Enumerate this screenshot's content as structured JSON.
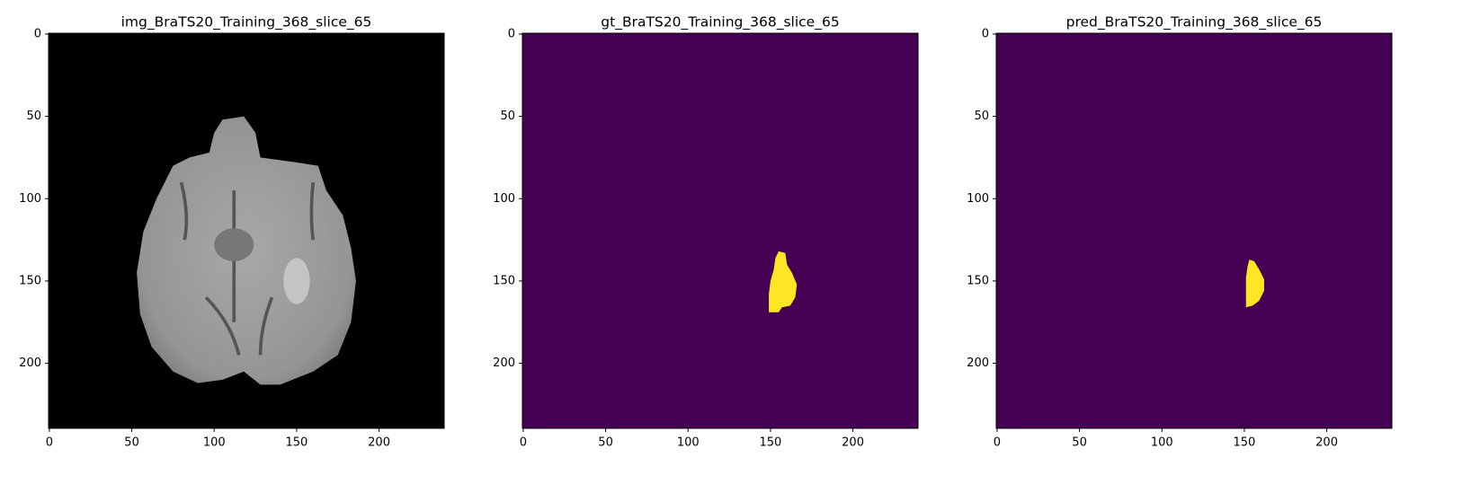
{
  "chart_data": [
    {
      "type": "image",
      "title": "img_BraTS20_Training_368_slice_65",
      "color": "#000000",
      "xlim": [
        -0.5,
        239.5
      ],
      "ylim": [
        239.5,
        -0.5
      ],
      "xticks": [
        0,
        50,
        100,
        150,
        200
      ],
      "yticks": [
        0,
        50,
        100,
        150,
        200
      ]
    },
    {
      "type": "image",
      "title": "gt_BraTS20_Training_368_slice_65",
      "color": "#440154",
      "mask_color": "#fde725",
      "xlim": [
        -0.5,
        239.5
      ],
      "ylim": [
        239.5,
        -0.5
      ],
      "xticks": [
        0,
        50,
        100,
        150,
        200
      ],
      "yticks": [
        0,
        50,
        100,
        150,
        200
      ]
    },
    {
      "type": "image",
      "title": "pred_BraTS20_Training_368_slice_65",
      "color": "#440154",
      "mask_color": "#fde725",
      "xlim": [
        -0.5,
        239.5
      ],
      "ylim": [
        239.5,
        -0.5
      ],
      "xticks": [
        0,
        50,
        100,
        150,
        200
      ],
      "yticks": [
        0,
        50,
        100,
        150,
        200
      ]
    }
  ]
}
